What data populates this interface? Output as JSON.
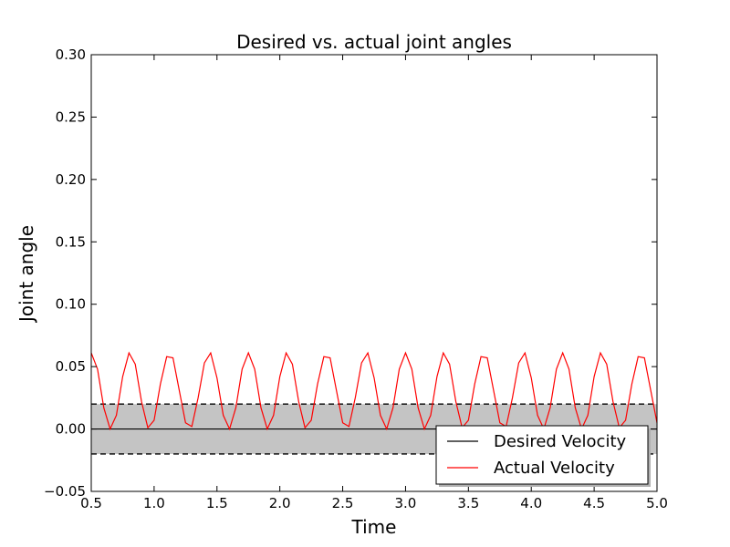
{
  "chart_data": {
    "type": "line",
    "title": "Desired vs. actual joint angles",
    "xlabel": "Time",
    "ylabel": "Joint angle",
    "xlim": [
      0.5,
      5.0
    ],
    "ylim": [
      -0.05,
      0.3
    ],
    "xticks": [
      0.5,
      1.0,
      1.5,
      2.0,
      2.5,
      3.0,
      3.5,
      4.0,
      4.5,
      5.0
    ],
    "xtick_labels": [
      "0.5",
      "1.0",
      "1.5",
      "2.0",
      "2.5",
      "3.0",
      "3.5",
      "4.0",
      "4.5",
      "5.0"
    ],
    "yticks": [
      -0.05,
      0.0,
      0.05,
      0.1,
      0.15,
      0.2,
      0.25,
      0.3
    ],
    "ytick_labels": [
      "−0.05",
      "0.00",
      "0.05",
      "0.10",
      "0.15",
      "0.20",
      "0.25",
      "0.30"
    ],
    "tolerance_band": [
      -0.02,
      0.02
    ],
    "band_color": "#c4c4c4",
    "grid": false,
    "legend_position": "lower-right",
    "series": [
      {
        "name": "Desired Velocity",
        "color": "#000000",
        "x": [
          0.5,
          5.0
        ],
        "y": [
          0.0,
          0.0
        ]
      },
      {
        "name": "Actual Velocity",
        "color": "#ff0000",
        "x": [
          0.5,
          0.55,
          0.6,
          0.65,
          0.7,
          0.75,
          0.8,
          0.85,
          0.9,
          0.95,
          1.0,
          1.05,
          1.1,
          1.15,
          1.2,
          1.25,
          1.3,
          1.35,
          1.4,
          1.45,
          1.5,
          1.55,
          1.6,
          1.65,
          1.7,
          1.75,
          1.8,
          1.85,
          1.9,
          1.95,
          2.0,
          2.05,
          2.1,
          2.15,
          2.2,
          2.25,
          2.3,
          2.35,
          2.4,
          2.45,
          2.5,
          2.55,
          2.6,
          2.65,
          2.7,
          2.75,
          2.8,
          2.85,
          2.9,
          2.95,
          3.0,
          3.05,
          3.1,
          3.15,
          3.2,
          3.25,
          3.3,
          3.35,
          3.4,
          3.45,
          3.5,
          3.55,
          3.6,
          3.65,
          3.7,
          3.75,
          3.8,
          3.85,
          3.9,
          3.95,
          4.0,
          4.05,
          4.1,
          4.15,
          4.2,
          4.25,
          4.3,
          4.35,
          4.4,
          4.45,
          4.5,
          4.55,
          4.6,
          4.65,
          4.7,
          4.75,
          4.8,
          4.85,
          4.9,
          4.95,
          5.0
        ],
        "y": [
          0.061,
          0.048,
          0.017,
          0.0,
          0.011,
          0.042,
          0.061,
          0.052,
          0.022,
          0.001,
          0.007,
          0.036,
          0.058,
          0.057,
          0.031,
          0.005,
          0.002,
          0.025,
          0.053,
          0.061,
          0.041,
          0.011,
          0.0,
          0.017,
          0.048,
          0.061,
          0.048,
          0.017,
          0.0,
          0.011,
          0.042,
          0.061,
          0.052,
          0.022,
          0.001,
          0.007,
          0.036,
          0.058,
          0.057,
          0.031,
          0.005,
          0.002,
          0.025,
          0.053,
          0.061,
          0.041,
          0.011,
          0.0,
          0.017,
          0.048,
          0.061,
          0.048,
          0.017,
          0.0,
          0.011,
          0.042,
          0.061,
          0.052,
          0.022,
          0.001,
          0.007,
          0.036,
          0.058,
          0.057,
          0.031,
          0.005,
          0.002,
          0.025,
          0.053,
          0.061,
          0.041,
          0.011,
          0.0,
          0.017,
          0.048,
          0.061,
          0.048,
          0.017,
          0.0,
          0.011,
          0.042,
          0.061,
          0.052,
          0.022,
          0.001,
          0.007,
          0.036,
          0.058,
          0.057,
          0.031,
          0.005
        ]
      }
    ]
  }
}
